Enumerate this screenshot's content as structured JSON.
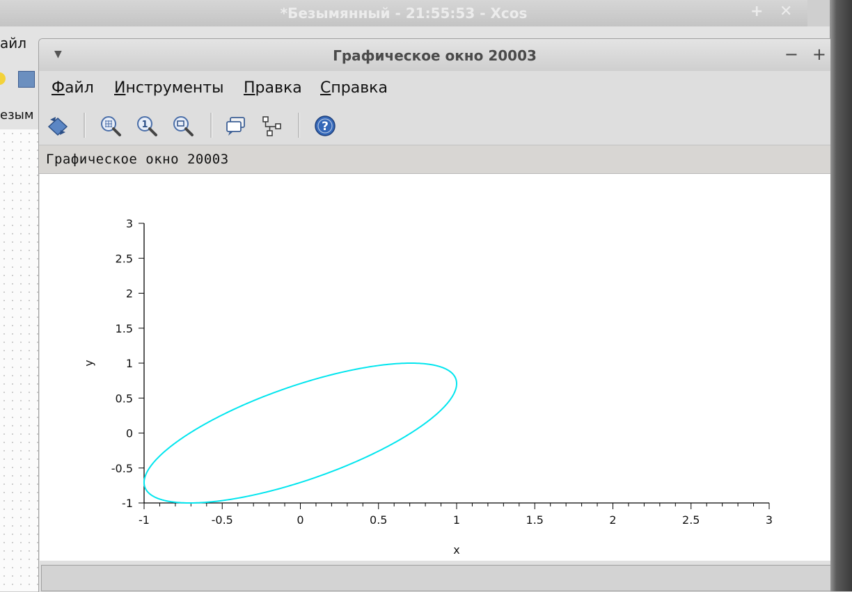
{
  "background_window": {
    "title": "*Безымянный - 21:55:53 - Xcos",
    "menu_partial": "айл",
    "tab_partial": "езым"
  },
  "graphic_window": {
    "title": "Графическое окно 20003",
    "menu": {
      "file": {
        "underline": "Ф",
        "rest": "айл"
      },
      "tools": {
        "underline": "И",
        "rest": "нструменты"
      },
      "edit": {
        "underline": "П",
        "rest": "равка"
      },
      "help": {
        "underline": "С",
        "rest": "правка"
      }
    },
    "subtitle": "Графическое окно 20003",
    "toolbar_icons": [
      "rotate-icon",
      "zoom-in-icon",
      "zoom-reset-icon",
      "zoom-area-icon",
      "datatip-icon",
      "tree-icon",
      "help-icon"
    ]
  },
  "chart_data": {
    "type": "line",
    "title": "",
    "xlabel": "x",
    "ylabel": "y",
    "xlim": [
      -1,
      3
    ],
    "ylim": [
      -1,
      3
    ],
    "xticks": [
      -1,
      -0.5,
      0,
      0.5,
      1,
      1.5,
      2,
      2.5,
      3
    ],
    "xtick_labels": [
      "-1",
      "-0.5",
      "0",
      "0.5",
      "1",
      "1.5",
      "2",
      "2.5",
      "3"
    ],
    "yticks": [
      -1,
      -0.5,
      0,
      0.5,
      1,
      1.5,
      2,
      2.5,
      3
    ],
    "ytick_labels": [
      "-1",
      "-0.5",
      "0",
      "0.5",
      "1",
      "1.5",
      "2",
      "2.5",
      "3"
    ],
    "grid": false,
    "series": [
      {
        "color": "#00e5ee",
        "parametric": "x = sin(t), y = sin(t + 0.785)",
        "x": [
          0.0,
          0.259,
          0.5,
          0.707,
          0.866,
          0.966,
          1.0,
          0.966,
          0.866,
          0.707,
          0.5,
          0.259,
          0.0,
          -0.259,
          -0.5,
          -0.707,
          -0.866,
          -0.966,
          -1.0,
          -0.966,
          -0.866,
          -0.707,
          -0.5,
          -0.259,
          0.0
        ],
        "y": [
          0.707,
          0.866,
          0.966,
          1.0,
          0.966,
          0.866,
          0.707,
          0.5,
          0.259,
          0.0,
          -0.259,
          -0.5,
          -0.707,
          -0.866,
          -0.966,
          -1.0,
          -0.966,
          -0.866,
          -0.707,
          -0.5,
          -0.259,
          0.0,
          0.259,
          0.5,
          0.707
        ]
      }
    ]
  }
}
